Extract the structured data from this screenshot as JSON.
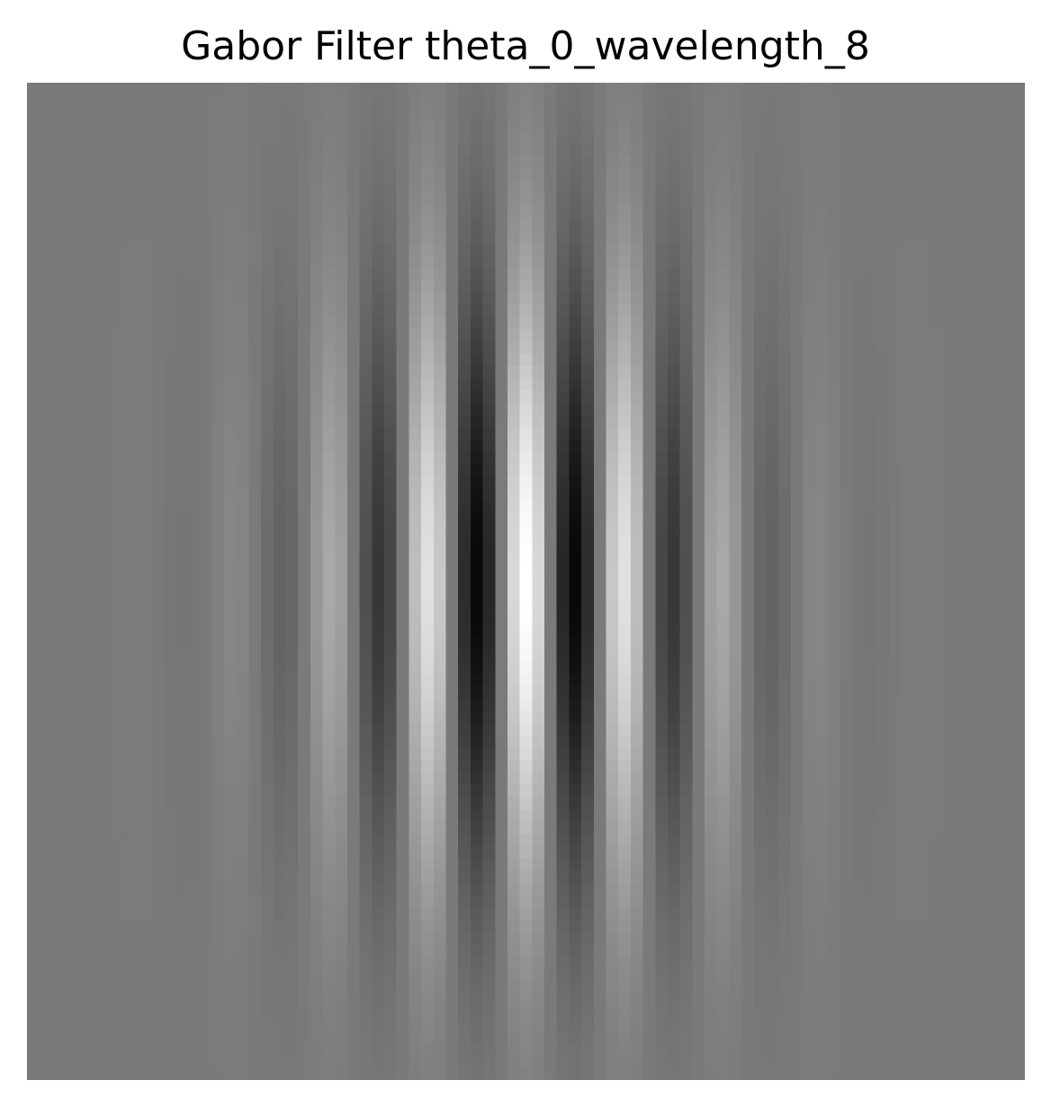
{
  "figure": {
    "title": "Gabor Filter theta_0_wavelength_8"
  },
  "image": {
    "kind": "gabor-kernel",
    "colormap": "gray",
    "theta": 0,
    "wavelength": 8,
    "kernel_size": 81,
    "sigma_x": 11,
    "sigma_y": 17,
    "background_color": "#7a7a7a"
  }
}
